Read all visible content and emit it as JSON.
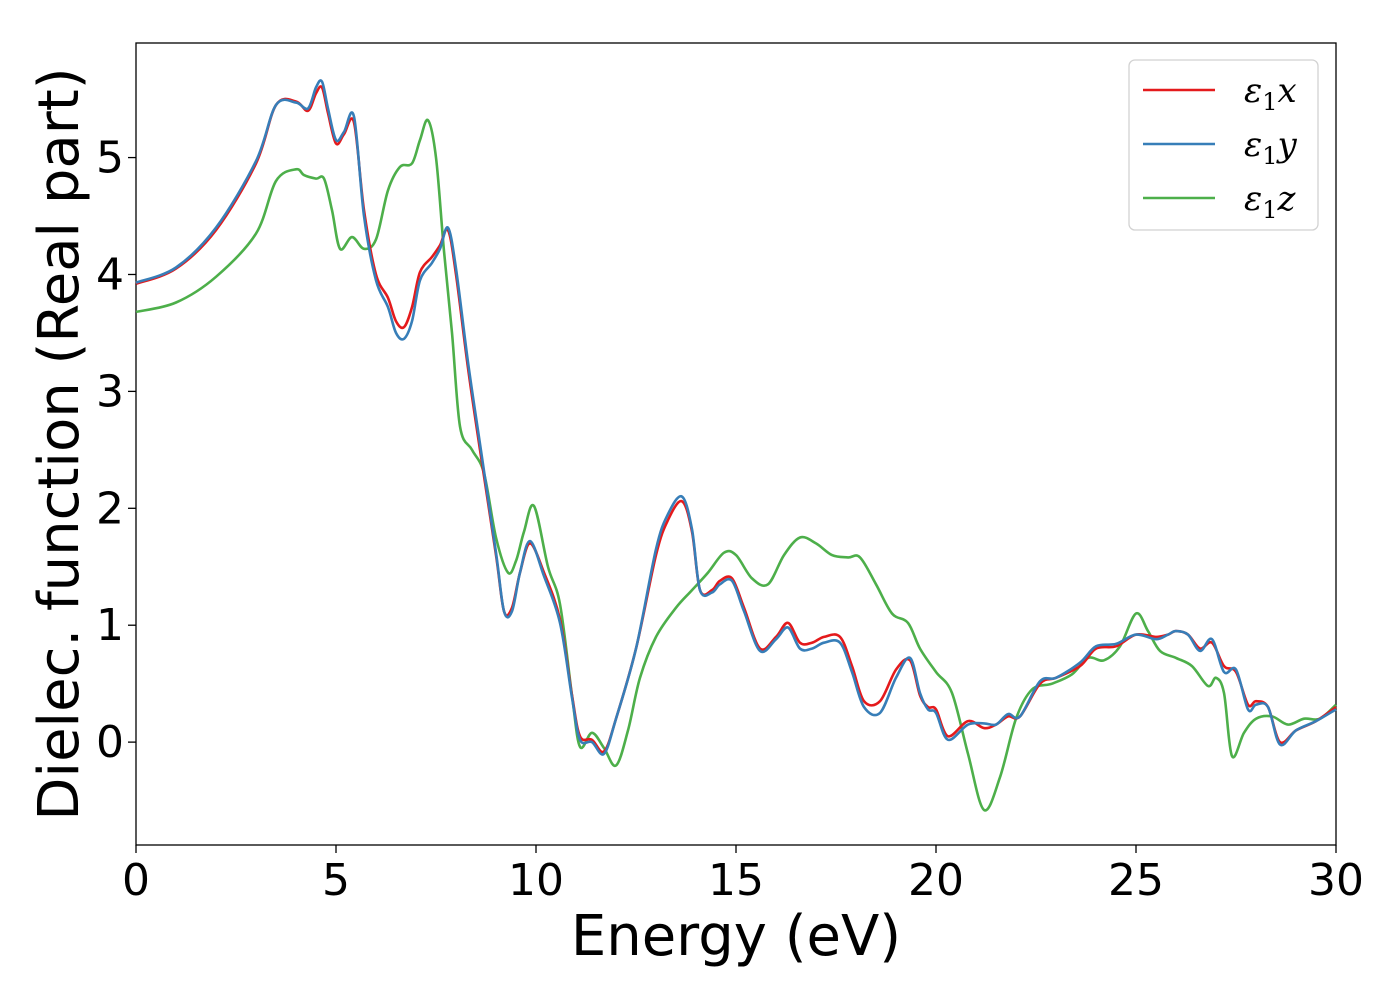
{
  "chart_data": {
    "type": "line",
    "title": "",
    "xlabel": "Energy (eV)",
    "ylabel": "Dielec. function (Real part)",
    "xlim": [
      0,
      30
    ],
    "ylim": [
      -0.88,
      5.98
    ],
    "xticks": [
      0,
      5,
      10,
      15,
      20,
      25,
      30
    ],
    "xtick_labels": [
      "0",
      "5",
      "10",
      "15",
      "20",
      "25",
      "30"
    ],
    "yticks": [
      0,
      1,
      2,
      3,
      4,
      5
    ],
    "ytick_labels": [
      "0",
      "1",
      "2",
      "3",
      "4",
      "5"
    ],
    "grid": false,
    "legend_position": "upper right",
    "series": [
      {
        "name": "ε1x",
        "name_main": "ε",
        "name_sub": "1",
        "name_var": "x",
        "color": "#e41a1c",
        "x": [
          0,
          1,
          2,
          3,
          3.5,
          4,
          4.3,
          4.5,
          4.65,
          4.8,
          5,
          5.2,
          5.45,
          5.7,
          6,
          6.3,
          6.5,
          6.7,
          6.9,
          7.1,
          7.4,
          7.6,
          7.8,
          8.0,
          8.3,
          8.6,
          9.0,
          9.2,
          9.4,
          9.6,
          9.85,
          10.2,
          10.6,
          10.9,
          11.1,
          11.4,
          11.7,
          12.0,
          12.5,
          13.0,
          13.3,
          13.65,
          13.9,
          14.1,
          14.4,
          14.6,
          14.9,
          15.2,
          15.6,
          16.0,
          16.3,
          16.6,
          16.9,
          17.2,
          17.6,
          17.9,
          18.2,
          18.6,
          19.0,
          19.35,
          19.6,
          19.8,
          20.0,
          20.3,
          20.8,
          21.2,
          21.5,
          21.8,
          22.1,
          22.6,
          23.0,
          23.6,
          24.0,
          24.5,
          25.0,
          25.5,
          25.8,
          26.0,
          26.3,
          26.6,
          26.9,
          27.2,
          27.5,
          27.8,
          28.0,
          28.3,
          28.6,
          29.0,
          29.5,
          30.0
        ],
        "y": [
          3.92,
          4.05,
          4.38,
          4.95,
          5.45,
          5.48,
          5.4,
          5.55,
          5.6,
          5.38,
          5.12,
          5.2,
          5.3,
          4.55,
          4.0,
          3.8,
          3.6,
          3.55,
          3.72,
          4.02,
          4.15,
          4.25,
          4.38,
          4.0,
          3.2,
          2.5,
          1.6,
          1.12,
          1.15,
          1.45,
          1.7,
          1.45,
          1.05,
          0.4,
          0.05,
          0.02,
          -0.08,
          0.2,
          0.8,
          1.6,
          1.9,
          2.06,
          1.8,
          1.3,
          1.3,
          1.38,
          1.4,
          1.15,
          0.8,
          0.9,
          1.02,
          0.85,
          0.85,
          0.9,
          0.9,
          0.65,
          0.35,
          0.35,
          0.62,
          0.7,
          0.4,
          0.3,
          0.28,
          0.05,
          0.18,
          0.12,
          0.15,
          0.22,
          0.22,
          0.5,
          0.55,
          0.65,
          0.8,
          0.82,
          0.92,
          0.9,
          0.92,
          0.95,
          0.92,
          0.8,
          0.85,
          0.65,
          0.6,
          0.32,
          0.35,
          0.3,
          0.0,
          0.1,
          0.18,
          0.3
        ]
      },
      {
        "name": "ε1y",
        "name_main": "ε",
        "name_sub": "1",
        "name_var": "y",
        "color": "#377eb8",
        "x": [
          0,
          1,
          2,
          3,
          3.5,
          4,
          4.3,
          4.5,
          4.65,
          4.8,
          5,
          5.2,
          5.45,
          5.7,
          6,
          6.3,
          6.5,
          6.7,
          6.9,
          7.1,
          7.4,
          7.6,
          7.8,
          8.0,
          8.3,
          8.6,
          9.0,
          9.2,
          9.4,
          9.6,
          9.85,
          10.2,
          10.6,
          10.9,
          11.1,
          11.4,
          11.7,
          12.0,
          12.5,
          13.0,
          13.3,
          13.65,
          13.9,
          14.1,
          14.4,
          14.6,
          14.9,
          15.2,
          15.6,
          16.0,
          16.3,
          16.6,
          16.9,
          17.2,
          17.6,
          17.9,
          18.2,
          18.6,
          19.0,
          19.35,
          19.6,
          19.8,
          20.0,
          20.3,
          20.8,
          21.2,
          21.5,
          21.8,
          22.1,
          22.6,
          23.0,
          23.6,
          24.0,
          24.5,
          25.0,
          25.5,
          25.8,
          26.0,
          26.3,
          26.6,
          26.9,
          27.2,
          27.5,
          27.8,
          28.0,
          28.3,
          28.6,
          29.0,
          29.5,
          30.0
        ],
        "y": [
          3.93,
          4.06,
          4.4,
          4.97,
          5.45,
          5.47,
          5.42,
          5.6,
          5.65,
          5.42,
          5.15,
          5.22,
          5.35,
          4.5,
          3.95,
          3.72,
          3.5,
          3.45,
          3.6,
          3.95,
          4.1,
          4.22,
          4.4,
          4.05,
          3.25,
          2.55,
          1.62,
          1.12,
          1.12,
          1.45,
          1.72,
          1.42,
          1.02,
          0.38,
          0.02,
          0.0,
          -0.1,
          0.2,
          0.8,
          1.65,
          1.95,
          2.1,
          1.82,
          1.3,
          1.28,
          1.35,
          1.38,
          1.12,
          0.78,
          0.88,
          0.98,
          0.8,
          0.8,
          0.85,
          0.85,
          0.6,
          0.3,
          0.25,
          0.55,
          0.72,
          0.42,
          0.28,
          0.25,
          0.02,
          0.15,
          0.16,
          0.15,
          0.24,
          0.22,
          0.52,
          0.55,
          0.68,
          0.82,
          0.84,
          0.92,
          0.88,
          0.92,
          0.95,
          0.92,
          0.78,
          0.88,
          0.6,
          0.62,
          0.28,
          0.32,
          0.3,
          -0.02,
          0.1,
          0.18,
          0.28
        ]
      },
      {
        "name": "ε1z",
        "name_main": "ε",
        "name_sub": "1",
        "name_var": "z",
        "color": "#4daf4a",
        "x": [
          0,
          1,
          2,
          3,
          3.5,
          4,
          4.2,
          4.5,
          4.7,
          4.9,
          5.1,
          5.4,
          5.7,
          6.0,
          6.3,
          6.6,
          6.9,
          7.1,
          7.3,
          7.5,
          7.7,
          7.9,
          8.1,
          8.4,
          8.7,
          9.0,
          9.3,
          9.5,
          9.7,
          9.95,
          10.3,
          10.6,
          10.9,
          11.1,
          11.4,
          11.7,
          12.0,
          12.3,
          12.6,
          13.0,
          13.5,
          13.9,
          14.3,
          14.7,
          15.0,
          15.4,
          15.8,
          16.2,
          16.6,
          17.0,
          17.4,
          17.8,
          18.1,
          18.5,
          18.9,
          19.3,
          19.6,
          20.0,
          20.4,
          20.8,
          21.2,
          21.6,
          22.0,
          22.4,
          22.9,
          23.4,
          23.8,
          24.2,
          24.6,
          25.0,
          25.3,
          25.6,
          26.0,
          26.4,
          26.8,
          27.0,
          27.2,
          27.4,
          27.7,
          28.0,
          28.4,
          28.8,
          29.2,
          29.6,
          30.0
        ],
        "y": [
          3.68,
          3.76,
          3.98,
          4.35,
          4.8,
          4.9,
          4.85,
          4.82,
          4.82,
          4.55,
          4.22,
          4.32,
          4.22,
          4.3,
          4.72,
          4.92,
          4.95,
          5.15,
          5.32,
          5.0,
          4.2,
          3.5,
          2.7,
          2.5,
          2.3,
          1.75,
          1.45,
          1.55,
          1.8,
          2.02,
          1.5,
          1.18,
          0.4,
          -0.04,
          0.08,
          -0.05,
          -0.2,
          0.1,
          0.55,
          0.9,
          1.15,
          1.3,
          1.45,
          1.62,
          1.6,
          1.4,
          1.35,
          1.6,
          1.75,
          1.7,
          1.6,
          1.58,
          1.58,
          1.35,
          1.1,
          1.02,
          0.8,
          0.6,
          0.42,
          -0.1,
          -0.58,
          -0.3,
          0.2,
          0.45,
          0.5,
          0.58,
          0.72,
          0.7,
          0.82,
          1.1,
          0.95,
          0.78,
          0.72,
          0.65,
          0.48,
          0.55,
          0.42,
          -0.12,
          0.08,
          0.2,
          0.22,
          0.15,
          0.2,
          0.2,
          0.32
        ]
      }
    ]
  }
}
